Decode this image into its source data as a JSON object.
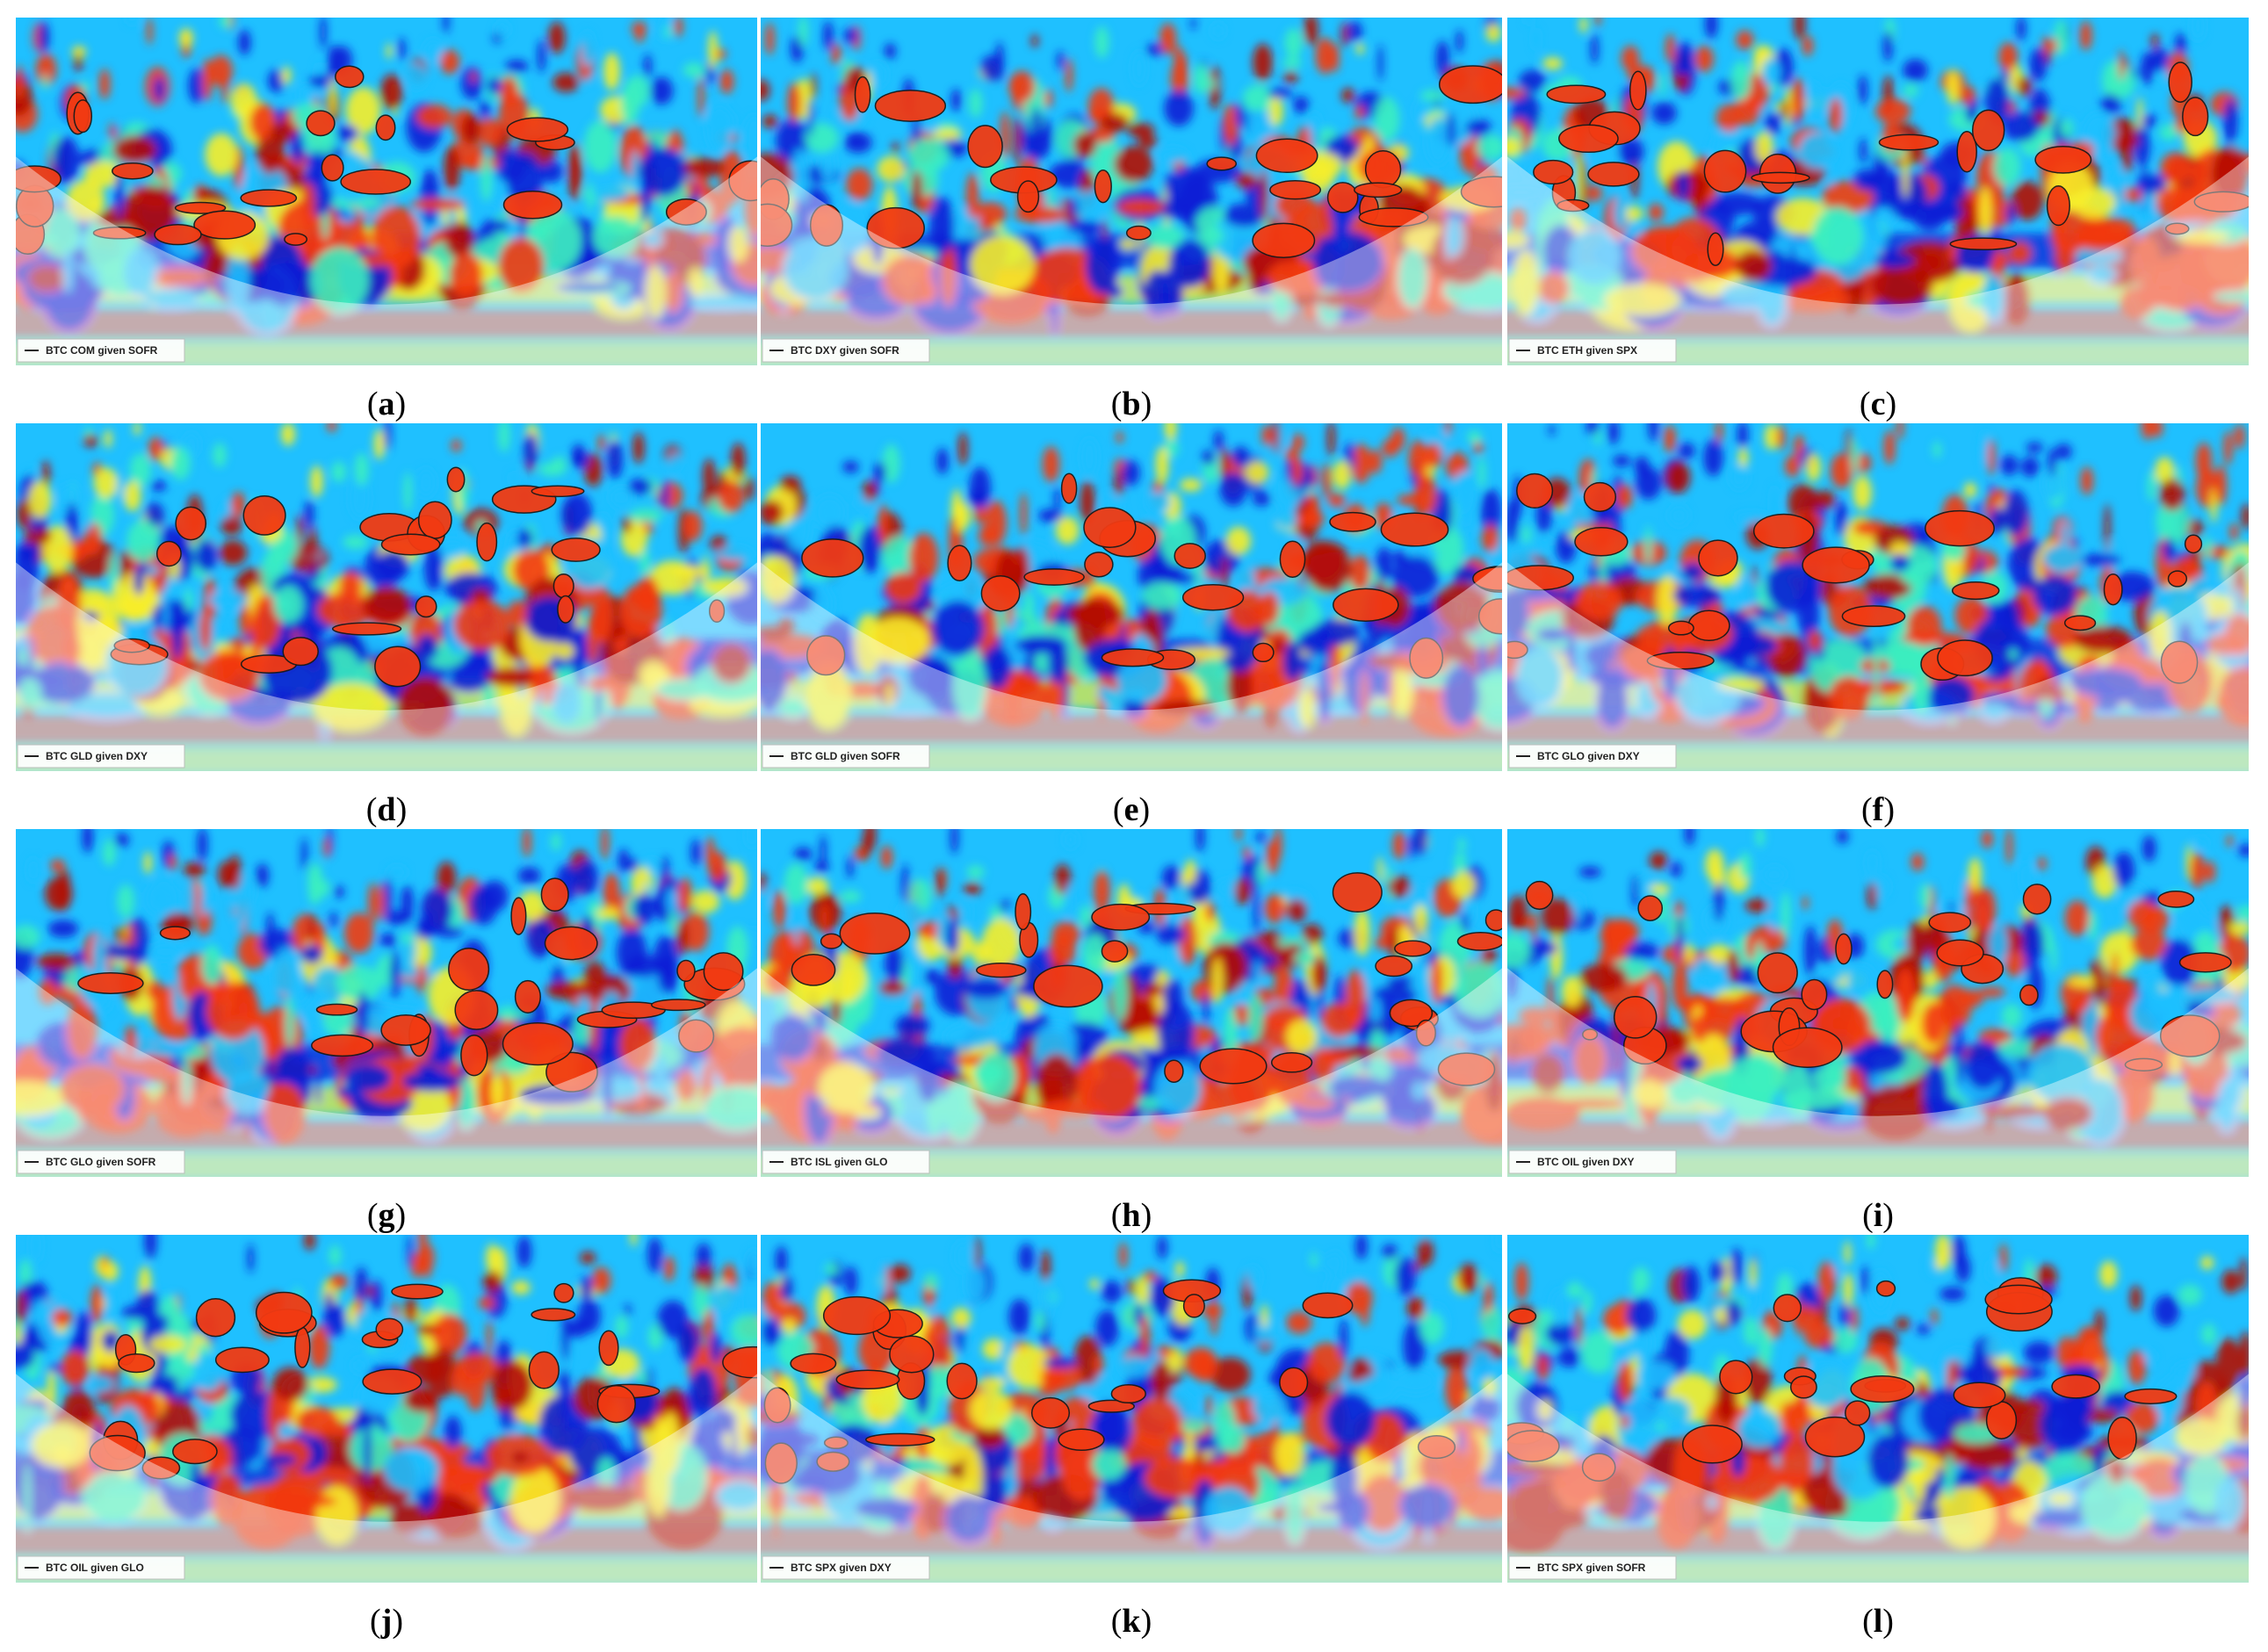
{
  "chart_data": [
    {
      "type": "heatmap",
      "label": "(a)",
      "letter": "a",
      "legend": "BTC COM given SOFR"
    },
    {
      "type": "heatmap",
      "label": "(b)",
      "letter": "b",
      "legend": "BTC DXY given SOFR"
    },
    {
      "type": "heatmap",
      "label": "(c)",
      "letter": "c",
      "legend": "BTC ETH given SPX"
    },
    {
      "type": "heatmap",
      "label": "(d)",
      "letter": "d",
      "legend": "BTC GLD given DXY"
    },
    {
      "type": "heatmap",
      "label": "(e)",
      "letter": "e",
      "legend": "BTC GLD given SOFR"
    },
    {
      "type": "heatmap",
      "label": "(f)",
      "letter": "f",
      "legend": "BTC GLO given DXY"
    },
    {
      "type": "heatmap",
      "label": "(g)",
      "letter": "g",
      "legend": "BTC GLO given SOFR"
    },
    {
      "type": "heatmap",
      "label": "(h)",
      "letter": "h",
      "legend": "BTC ISL given GLO"
    },
    {
      "type": "heatmap",
      "label": "(i)",
      "letter": "i",
      "legend": "BTC OIL given DXY"
    },
    {
      "type": "heatmap",
      "label": "(j)",
      "letter": "j",
      "legend": "BTC OIL given GLO"
    },
    {
      "type": "heatmap",
      "label": "(k)",
      "letter": "k",
      "legend": "BTC SPX given DXY"
    },
    {
      "type": "heatmap",
      "label": "(l)",
      "letter": "l",
      "legend": "BTC SPX given SOFR"
    }
  ],
  "colors": {
    "low": "#0a1fd6",
    "mid_low": "#1fc0ff",
    "mid": "#3cf0c0",
    "mid_high": "#f7ee2a",
    "high": "#f23a12",
    "very_high": "#b40a05",
    "contour": "#1a1a1a",
    "cone_overlay": "#ffffff"
  }
}
